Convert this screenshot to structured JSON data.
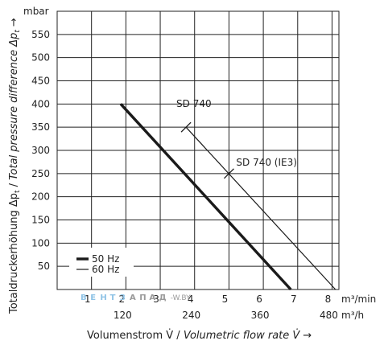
{
  "chart_data": {
    "type": "line",
    "y_unit": "mbar",
    "ylabel_prefix": "Totaldruckerhöhung ",
    "ylabel_sym1": "Δp",
    "ylabel_sub1": "t",
    "ylabel_mid": " / ",
    "ylabel_italic": "Total pressure difference ",
    "ylabel_sym2": "Δp",
    "ylabel_sub2": "t",
    "ylabel_arrow": "→",
    "xlabel_prefix": "Volumenstrom V̇ / ",
    "xlabel_italic": "Volumetric flow rate V̇",
    "xlabel_arrow": "→",
    "x_unit_primary": "m³/min",
    "x_unit_secondary": "m³/h",
    "xlim": [
      0,
      8.2
    ],
    "ylim": [
      0,
      600
    ],
    "grid": true,
    "x_ticks": [
      1,
      2,
      3,
      4,
      5,
      6,
      7,
      8
    ],
    "x_tick_labels": [
      "1",
      "2",
      "3",
      "4",
      "5",
      "6",
      "7",
      "8"
    ],
    "x_secondary_ticks": [
      2,
      4,
      6,
      8
    ],
    "x_secondary_labels": [
      "120",
      "240",
      "360",
      "480"
    ],
    "y_ticks": [
      50,
      100,
      150,
      200,
      250,
      300,
      350,
      400,
      450,
      500,
      550
    ],
    "y_tick_labels": [
      "50",
      "100",
      "150",
      "200",
      "250",
      "300",
      "350",
      "400",
      "450",
      "500",
      "550"
    ],
    "series": [
      {
        "name": "50 Hz",
        "style": "thick",
        "x": [
          1.85,
          6.8
        ],
        "y": [
          400,
          0
        ]
      },
      {
        "name": "60 Hz",
        "style": "thin",
        "x": [
          3.75,
          8.1
        ],
        "y": [
          350,
          0
        ]
      }
    ],
    "markers": [
      {
        "label": "SD 740",
        "x": 3.75,
        "y": 350
      },
      {
        "label": "SD 740 (IE3)",
        "x": 5.0,
        "y": 250
      }
    ],
    "legend": {
      "position": "bottom-left",
      "items": [
        {
          "label": "50 Hz",
          "style": "thick"
        },
        {
          "label": "60 Hz",
          "style": "thin"
        }
      ]
    },
    "watermark": {
      "letters": [
        "В",
        "Е",
        "Н",
        "Т",
        "З",
        "А",
        "П",
        "А",
        "Д"
      ],
      "suffix": "-W.BY"
    }
  },
  "colors": {
    "line": "#1a1a1a",
    "grid": "#222222",
    "watermark_left": "#8fc3e6",
    "watermark_right": "#9a9a9a"
  }
}
